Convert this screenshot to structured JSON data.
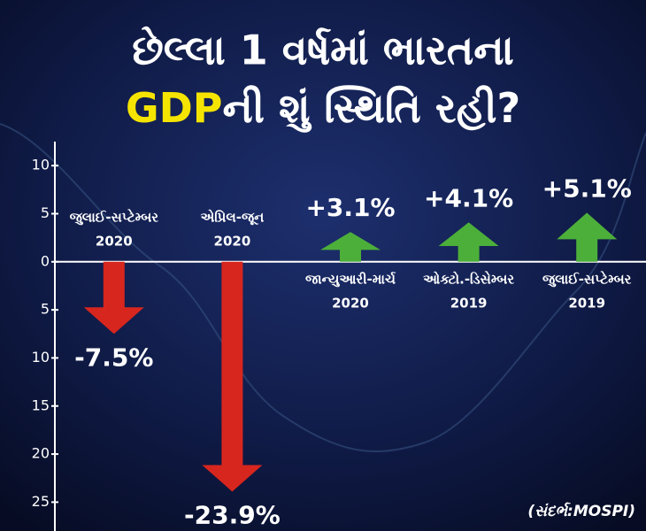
{
  "chart_data": {
    "type": "bar",
    "title": {
      "line1": "છેલ્લા 1 વર્ષમાં ભારતના",
      "highlight": "GDP",
      "line2": "ની શું સ્થિતિ રહી?"
    },
    "categories": [
      [
        "જુલાઈ-સપ્ટેમ્બર",
        "2020"
      ],
      [
        "એપ્રિલ-જૂન",
        "2020"
      ],
      [
        "જાન્યુઆરી-માર્ચ",
        "2020"
      ],
      [
        "ઓક્ટો.-ડિસેમ્બર",
        "2019"
      ],
      [
        "જુલાઈ-સપ્ટેમ્બર",
        "2019"
      ]
    ],
    "values": [
      -7.5,
      -23.9,
      3.1,
      4.1,
      5.1
    ],
    "value_labels": [
      "-7.5%",
      "-23.9%",
      "+3.1%",
      "+4.1%",
      "+5.1%"
    ],
    "colors": {
      "negative": "#d7261e",
      "positive": "#4caf3a"
    },
    "ylim": [
      -28,
      12.5
    ],
    "yticks": [
      10,
      5,
      0,
      {
        "value": -5,
        "label": "5"
      },
      {
        "value": -10,
        "label": "10"
      },
      {
        "value": -15,
        "label": "15"
      },
      {
        "value": -20,
        "label": "20"
      },
      {
        "value": -25,
        "label": "25"
      }
    ],
    "source": "(સંદર્ભ:MOSPI)"
  }
}
